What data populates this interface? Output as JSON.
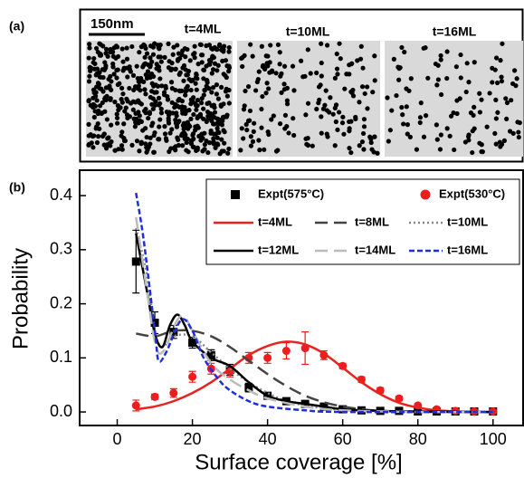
{
  "panel_a": {
    "label": "(a)",
    "scale_bar": "150nm",
    "images": [
      "t=4ML",
      "t=10ML",
      "t=16ML"
    ]
  },
  "chart_data": {
    "type": "scatter",
    "panel_label": "(b)",
    "x_label": "Surface coverage [%]",
    "y_label": "Probability",
    "xlim": [
      -10,
      108
    ],
    "ylim": [
      -0.025,
      0.447
    ],
    "xticks": [
      0,
      20,
      40,
      60,
      80,
      100
    ],
    "yticks": [
      {
        "value": 0,
        "label": "0.0"
      },
      0.1,
      0.2,
      0.3,
      0.4
    ],
    "series": [
      {
        "name": "Expt(575°C)",
        "type": "scatter",
        "marker": "square",
        "color": "#000000",
        "x": [
          5,
          10,
          15,
          20,
          25,
          30,
          35,
          40,
          45,
          50,
          55,
          60,
          65,
          70,
          75,
          80,
          85,
          90,
          95,
          100
        ],
        "values": [
          0.278,
          0.165,
          0.148,
          0.128,
          0.105,
          0.078,
          0.045,
          0.03,
          0.02,
          0.015,
          0.01,
          0.005,
          0.003,
          0.002,
          0.002,
          0.001,
          0.001,
          0.001,
          0.001,
          0.001
        ],
        "errors": [
          0.058,
          0.02,
          0.012,
          0.01,
          0.01,
          0.01,
          0.008,
          0.006,
          0.005,
          0.004,
          0.003,
          0.003,
          0.002,
          0.002,
          0.002,
          0.002,
          0.002,
          0.002,
          0.002,
          0.002
        ]
      },
      {
        "name": "Expt(530°C)",
        "type": "scatter",
        "marker": "circle",
        "color": "#ee1c1c",
        "x": [
          5,
          10,
          15,
          20,
          25,
          30,
          35,
          40,
          45,
          50,
          55,
          60,
          65,
          70,
          75,
          80,
          85,
          90,
          95,
          100
        ],
        "values": [
          0.012,
          0.028,
          0.035,
          0.065,
          0.08,
          0.075,
          0.1,
          0.1,
          0.113,
          0.118,
          0.105,
          0.085,
          0.06,
          0.04,
          0.025,
          0.012,
          0.005,
          0.002,
          0.001,
          0.001
        ],
        "errors": [
          0.01,
          0.005,
          0.008,
          0.01,
          0.01,
          0.01,
          0.01,
          0.01,
          0.015,
          0.03,
          0.008,
          0.005,
          0.005,
          0.005,
          0.004,
          0.003,
          0.002,
          0.002,
          0.002,
          0.002
        ]
      },
      {
        "name": "t=4ML",
        "type": "line",
        "color": "#e8231f",
        "dash": "solid",
        "x": [
          5,
          10,
          15,
          20,
          25,
          30,
          35,
          40,
          45,
          50,
          55,
          60,
          65,
          70,
          75,
          80,
          85,
          90,
          95,
          100
        ],
        "values": [
          0.005,
          0.01,
          0.02,
          0.035,
          0.055,
          0.08,
          0.105,
          0.122,
          0.13,
          0.125,
          0.108,
          0.082,
          0.055,
          0.033,
          0.017,
          0.008,
          0.003,
          0.001,
          0,
          0
        ]
      },
      {
        "name": "t=8ML",
        "type": "line",
        "color": "#444444",
        "dash": "long",
        "x": [
          5,
          10,
          15,
          20,
          25,
          30,
          35,
          40,
          45,
          50,
          55,
          60,
          65,
          70,
          75,
          80,
          90,
          100
        ],
        "values": [
          0.145,
          0.14,
          0.15,
          0.15,
          0.14,
          0.12,
          0.095,
          0.07,
          0.048,
          0.03,
          0.018,
          0.01,
          0.005,
          0.002,
          0.001,
          0,
          0,
          0
        ]
      },
      {
        "name": "t=10ML",
        "type": "line",
        "color": "#888888",
        "dash": "dot",
        "x": [
          5,
          8,
          10,
          12,
          15,
          20,
          25,
          30,
          35,
          40,
          45,
          50,
          55,
          60,
          70,
          80,
          100
        ],
        "values": [
          0.34,
          0.25,
          0.15,
          0.12,
          0.14,
          0.14,
          0.11,
          0.08,
          0.055,
          0.035,
          0.02,
          0.012,
          0.007,
          0.004,
          0.001,
          0,
          0
        ]
      },
      {
        "name": "t=12ML",
        "type": "line",
        "color": "#000000",
        "dash": "solid",
        "x": [
          5,
          8,
          10,
          12,
          14,
          16,
          18,
          20,
          25,
          30,
          35,
          40,
          45,
          50,
          55,
          60,
          70,
          80,
          100
        ],
        "values": [
          0.33,
          0.22,
          0.145,
          0.12,
          0.16,
          0.18,
          0.16,
          0.13,
          0.1,
          0.085,
          0.055,
          0.03,
          0.02,
          0.015,
          0.01,
          0.005,
          0.002,
          0.001,
          0
        ]
      },
      {
        "name": "t=14ML",
        "type": "line",
        "color": "#bbbbbb",
        "dash": "long",
        "x": [
          5,
          8,
          10,
          12,
          16,
          18,
          20,
          25,
          30,
          35,
          40,
          50,
          60,
          80,
          100
        ],
        "values": [
          0.36,
          0.22,
          0.13,
          0.11,
          0.17,
          0.175,
          0.15,
          0.09,
          0.06,
          0.04,
          0.025,
          0.01,
          0.003,
          0,
          0
        ]
      },
      {
        "name": "t=16ML",
        "type": "line",
        "color": "#1f2fd6",
        "dash": "short",
        "x": [
          5,
          7,
          10,
          11,
          13,
          17,
          20,
          23,
          27,
          30,
          35,
          40,
          50,
          60,
          100
        ],
        "values": [
          0.405,
          0.32,
          0.15,
          0.095,
          0.11,
          0.17,
          0.15,
          0.1,
          0.06,
          0.04,
          0.02,
          0.01,
          0.003,
          0,
          0
        ]
      }
    ]
  }
}
